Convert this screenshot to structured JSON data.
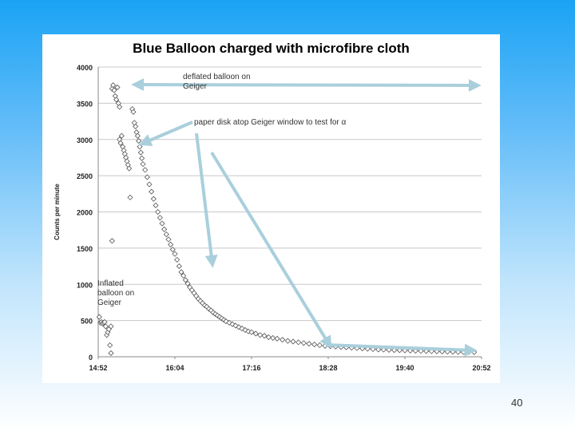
{
  "slide": {
    "number": "40"
  },
  "chart_data": {
    "type": "scatter",
    "title": "Blue Balloon charged with microfibre cloth",
    "xlabel": "",
    "ylabel": "Counts per minute",
    "xlim": [
      "14:52",
      "20:52"
    ],
    "x_ticks": [
      "14:52",
      "16:04",
      "17:16",
      "18:28",
      "19:40",
      "20:52"
    ],
    "ylim": [
      0,
      4000
    ],
    "y_ticks": [
      "0",
      "500",
      "1000",
      "1500",
      "2000",
      "2500",
      "3000",
      "3500",
      "4000"
    ],
    "grid": "horizontal",
    "marker": "diamond",
    "series": [
      {
        "values": [
          {
            "x": "14:53",
            "y": 550
          },
          {
            "x": "14:54",
            "y": 470
          },
          {
            "x": "14:55",
            "y": 480
          },
          {
            "x": "14:56",
            "y": 460
          },
          {
            "x": "14:57",
            "y": 470
          },
          {
            "x": "14:58",
            "y": 480
          },
          {
            "x": "14:59",
            "y": 420
          },
          {
            "x": "15:00",
            "y": 300
          },
          {
            "x": "15:01",
            "y": 340
          },
          {
            "x": "15:02",
            "y": 380
          },
          {
            "x": "15:03",
            "y": 160
          },
          {
            "x": "15:04",
            "y": 50
          },
          {
            "x": "15:04",
            "y": 420
          },
          {
            "x": "15:05",
            "y": 1600
          },
          {
            "x": "15:05",
            "y": 3700
          },
          {
            "x": "15:06",
            "y": 3750
          },
          {
            "x": "15:07",
            "y": 3680
          },
          {
            "x": "15:08",
            "y": 3600
          },
          {
            "x": "15:09",
            "y": 3550
          },
          {
            "x": "15:10",
            "y": 3720
          },
          {
            "x": "15:11",
            "y": 3500
          },
          {
            "x": "15:12",
            "y": 3450
          },
          {
            "x": "15:12",
            "y": 3000
          },
          {
            "x": "15:13",
            "y": 2950
          },
          {
            "x": "15:14",
            "y": 3050
          },
          {
            "x": "15:15",
            "y": 2900
          },
          {
            "x": "15:16",
            "y": 2850
          },
          {
            "x": "15:17",
            "y": 2800
          },
          {
            "x": "15:18",
            "y": 2750
          },
          {
            "x": "15:19",
            "y": 2700
          },
          {
            "x": "15:20",
            "y": 2650
          },
          {
            "x": "15:21",
            "y": 2600
          },
          {
            "x": "15:22",
            "y": 2200
          },
          {
            "x": "15:24",
            "y": 3420
          },
          {
            "x": "15:25",
            "y": 3380
          },
          {
            "x": "15:26",
            "y": 3230
          },
          {
            "x": "15:27",
            "y": 3180
          },
          {
            "x": "15:28",
            "y": 3100
          },
          {
            "x": "15:29",
            "y": 3050
          },
          {
            "x": "15:30",
            "y": 2980
          },
          {
            "x": "15:31",
            "y": 2900
          },
          {
            "x": "15:32",
            "y": 2820
          },
          {
            "x": "15:33",
            "y": 2740
          },
          {
            "x": "15:34",
            "y": 2660
          },
          {
            "x": "15:36",
            "y": 2580
          },
          {
            "x": "15:38",
            "y": 2480
          },
          {
            "x": "15:40",
            "y": 2380
          },
          {
            "x": "15:42",
            "y": 2280
          },
          {
            "x": "15:44",
            "y": 2180
          },
          {
            "x": "15:46",
            "y": 2090
          },
          {
            "x": "15:48",
            "y": 2000
          },
          {
            "x": "15:50",
            "y": 1920
          },
          {
            "x": "15:52",
            "y": 1840
          },
          {
            "x": "15:54",
            "y": 1760
          },
          {
            "x": "15:56",
            "y": 1690
          },
          {
            "x": "15:58",
            "y": 1620
          },
          {
            "x": "16:00",
            "y": 1550
          },
          {
            "x": "16:02",
            "y": 1480
          },
          {
            "x": "16:04",
            "y": 1420
          },
          {
            "x": "16:06",
            "y": 1340
          },
          {
            "x": "16:08",
            "y": 1250
          },
          {
            "x": "16:10",
            "y": 1170
          },
          {
            "x": "16:12",
            "y": 1120
          },
          {
            "x": "16:14",
            "y": 1060
          },
          {
            "x": "16:16",
            "y": 1010
          },
          {
            "x": "16:18",
            "y": 960
          },
          {
            "x": "16:20",
            "y": 920
          },
          {
            "x": "16:22",
            "y": 880
          },
          {
            "x": "16:24",
            "y": 840
          },
          {
            "x": "16:26",
            "y": 800
          },
          {
            "x": "16:28",
            "y": 770
          },
          {
            "x": "16:30",
            "y": 740
          },
          {
            "x": "16:32",
            "y": 710
          },
          {
            "x": "16:34",
            "y": 690
          },
          {
            "x": "16:36",
            "y": 660
          },
          {
            "x": "16:38",
            "y": 640
          },
          {
            "x": "16:40",
            "y": 610
          },
          {
            "x": "16:42",
            "y": 590
          },
          {
            "x": "16:44",
            "y": 570
          },
          {
            "x": "16:46",
            "y": 550
          },
          {
            "x": "16:48",
            "y": 530
          },
          {
            "x": "16:50",
            "y": 510
          },
          {
            "x": "16:52",
            "y": 490
          },
          {
            "x": "16:55",
            "y": 470
          },
          {
            "x": "16:58",
            "y": 450
          },
          {
            "x": "17:01",
            "y": 430
          },
          {
            "x": "17:04",
            "y": 410
          },
          {
            "x": "17:07",
            "y": 390
          },
          {
            "x": "17:10",
            "y": 370
          },
          {
            "x": "17:13",
            "y": 350
          },
          {
            "x": "17:16",
            "y": 340
          },
          {
            "x": "17:20",
            "y": 320
          },
          {
            "x": "17:24",
            "y": 300
          },
          {
            "x": "17:28",
            "y": 290
          },
          {
            "x": "17:32",
            "y": 270
          },
          {
            "x": "17:36",
            "y": 260
          },
          {
            "x": "17:40",
            "y": 250
          },
          {
            "x": "17:45",
            "y": 235
          },
          {
            "x": "17:50",
            "y": 220
          },
          {
            "x": "17:55",
            "y": 210
          },
          {
            "x": "18:00",
            "y": 200
          },
          {
            "x": "18:05",
            "y": 190
          },
          {
            "x": "18:10",
            "y": 180
          },
          {
            "x": "18:15",
            "y": 170
          },
          {
            "x": "18:20",
            "y": 160
          },
          {
            "x": "18:25",
            "y": 150
          },
          {
            "x": "18:30",
            "y": 145
          },
          {
            "x": "18:35",
            "y": 140
          },
          {
            "x": "18:40",
            "y": 135
          },
          {
            "x": "18:45",
            "y": 130
          },
          {
            "x": "18:50",
            "y": 125
          },
          {
            "x": "18:55",
            "y": 120
          },
          {
            "x": "19:00",
            "y": 115
          },
          {
            "x": "19:05",
            "y": 110
          },
          {
            "x": "19:10",
            "y": 105
          },
          {
            "x": "19:15",
            "y": 100
          },
          {
            "x": "19:20",
            "y": 98
          },
          {
            "x": "19:25",
            "y": 95
          },
          {
            "x": "19:30",
            "y": 92
          },
          {
            "x": "19:35",
            "y": 90
          },
          {
            "x": "19:40",
            "y": 88
          },
          {
            "x": "19:45",
            "y": 85
          },
          {
            "x": "19:50",
            "y": 82
          },
          {
            "x": "19:55",
            "y": 80
          },
          {
            "x": "20:00",
            "y": 78
          },
          {
            "x": "20:05",
            "y": 76
          },
          {
            "x": "20:10",
            "y": 74
          },
          {
            "x": "20:15",
            "y": 72
          },
          {
            "x": "20:20",
            "y": 70
          },
          {
            "x": "20:25",
            "y": 68
          },
          {
            "x": "20:30",
            "y": 66
          },
          {
            "x": "20:35",
            "y": 65
          },
          {
            "x": "20:40",
            "y": 64
          },
          {
            "x": "20:45",
            "y": 63
          }
        ]
      }
    ],
    "annotations": [
      {
        "id": "deflated",
        "lines": [
          "deflated balloon on",
          "Geiger"
        ]
      },
      {
        "id": "paper",
        "lines": [
          "paper  disk atop Geiger window to test for α"
        ]
      },
      {
        "id": "inflated",
        "lines": [
          "Inflated",
          "balloon on",
          "Geiger"
        ]
      }
    ],
    "arrow_color": "#a9cfdc"
  }
}
